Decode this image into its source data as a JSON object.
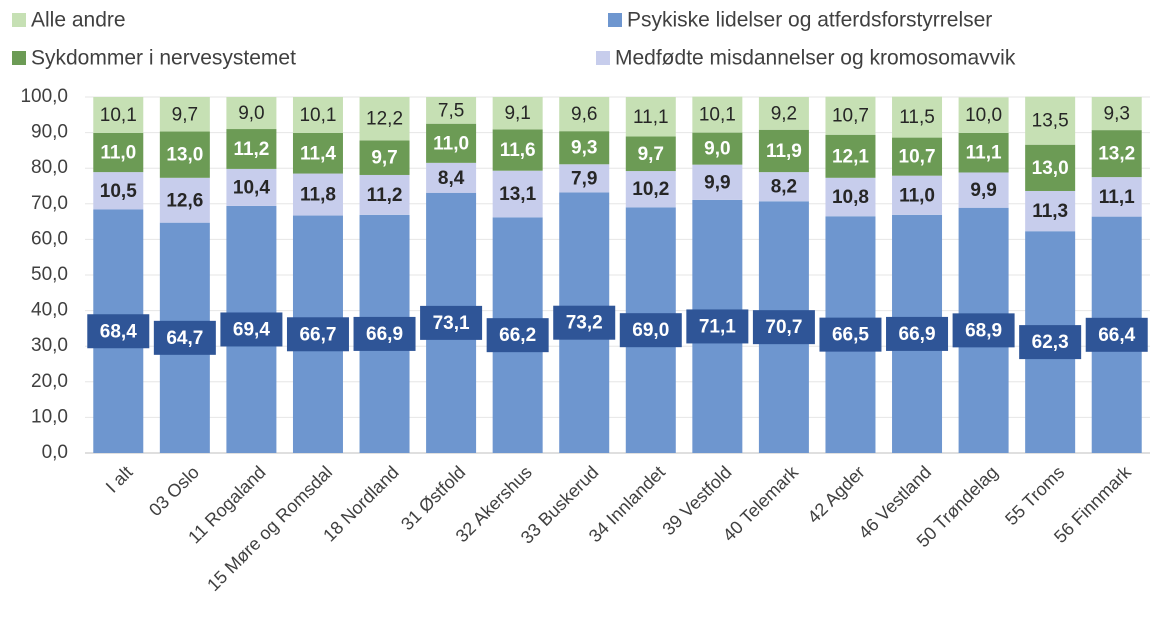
{
  "chart_data": {
    "type": "stacked_bar",
    "categories": [
      "I alt",
      "03 Oslo",
      "11 Rogaland",
      "15 Møre og Romsdal",
      "18 Nordland",
      "31 Østfold",
      "32 Akershus",
      "33 Buskerud",
      "34 Innlandet",
      "39 Vestfold",
      "40 Telemark",
      "42 Agder",
      "46 Vestland",
      "50 Trøndelag",
      "55 Troms",
      "56 Finnmark"
    ],
    "series": [
      {
        "name": "Psykiske lidelser og atferdsforstyrrelser",
        "color": "#6e96cf",
        "values": [
          68.4,
          64.7,
          69.4,
          66.7,
          66.9,
          73.1,
          66.2,
          73.2,
          69.0,
          71.1,
          70.7,
          66.5,
          66.9,
          68.9,
          62.3,
          66.4
        ],
        "value_labels": [
          "68,4",
          "64,7",
          "69,4",
          "66,7",
          "66,9",
          "73,1",
          "66,2",
          "73,2",
          "69,0",
          "71,1",
          "70,7",
          "66,5",
          "66,9",
          "68,9",
          "62,3",
          "66,4"
        ]
      },
      {
        "name": "Medfødte misdannelser og kromosomavvik",
        "color": "#c7cdec",
        "values": [
          10.5,
          12.6,
          10.4,
          11.8,
          11.2,
          8.4,
          13.1,
          7.9,
          10.2,
          9.9,
          8.2,
          10.8,
          11.0,
          9.9,
          11.3,
          11.1
        ],
        "value_labels": [
          "10,5",
          "12,6",
          "10,4",
          "11,8",
          "11,2",
          "8,4",
          "13,1",
          "7,9",
          "10,2",
          "9,9",
          "8,2",
          "10,8",
          "11,0",
          "9,9",
          "11,3",
          "11,1"
        ]
      },
      {
        "name": "Sykdommer i nervesystemet",
        "color": "#6c9b55",
        "values": [
          11.0,
          13.0,
          11.2,
          11.4,
          9.7,
          11.0,
          11.6,
          9.3,
          9.7,
          9.0,
          11.9,
          12.1,
          10.7,
          11.1,
          13.0,
          13.2
        ],
        "value_labels": [
          "11,0",
          "13,0",
          "11,2",
          "11,4",
          "9,7",
          "11,0",
          "11,6",
          "9,3",
          "9,7",
          "9,0",
          "11,9",
          "12,1",
          "10,7",
          "11,1",
          "13,0",
          "13,2"
        ]
      },
      {
        "name": "Alle andre",
        "color": "#c6e0b4",
        "values": [
          10.1,
          9.7,
          9.0,
          10.1,
          12.2,
          7.5,
          9.1,
          9.6,
          11.1,
          10.1,
          9.2,
          10.7,
          11.5,
          10.0,
          13.5,
          9.3
        ],
        "value_labels": [
          "10,1",
          "9,7",
          "9,0",
          "10,1",
          "12,2",
          "7,5",
          "9,1",
          "9,6",
          "11,1",
          "10,1",
          "9,2",
          "10,7",
          "11,5",
          "10,0",
          "13,5",
          "9,3"
        ]
      }
    ],
    "ylim": [
      0,
      100
    ],
    "yticks": [
      {
        "value": 0,
        "label": "0,0"
      },
      {
        "value": 10,
        "label": "10,0"
      },
      {
        "value": 20,
        "label": "20,0"
      },
      {
        "value": 30,
        "label": "30,0"
      },
      {
        "value": 40,
        "label": "40,0"
      },
      {
        "value": 50,
        "label": "50,0"
      },
      {
        "value": 60,
        "label": "60,0"
      },
      {
        "value": 70,
        "label": "70,0"
      },
      {
        "value": 80,
        "label": "80,0"
      },
      {
        "value": 90,
        "label": "90,0"
      },
      {
        "value": {
          "value": 100,
          "label": "100,0"
        },
        "label": "100,0"
      }
    ],
    "legend": "top"
  }
}
